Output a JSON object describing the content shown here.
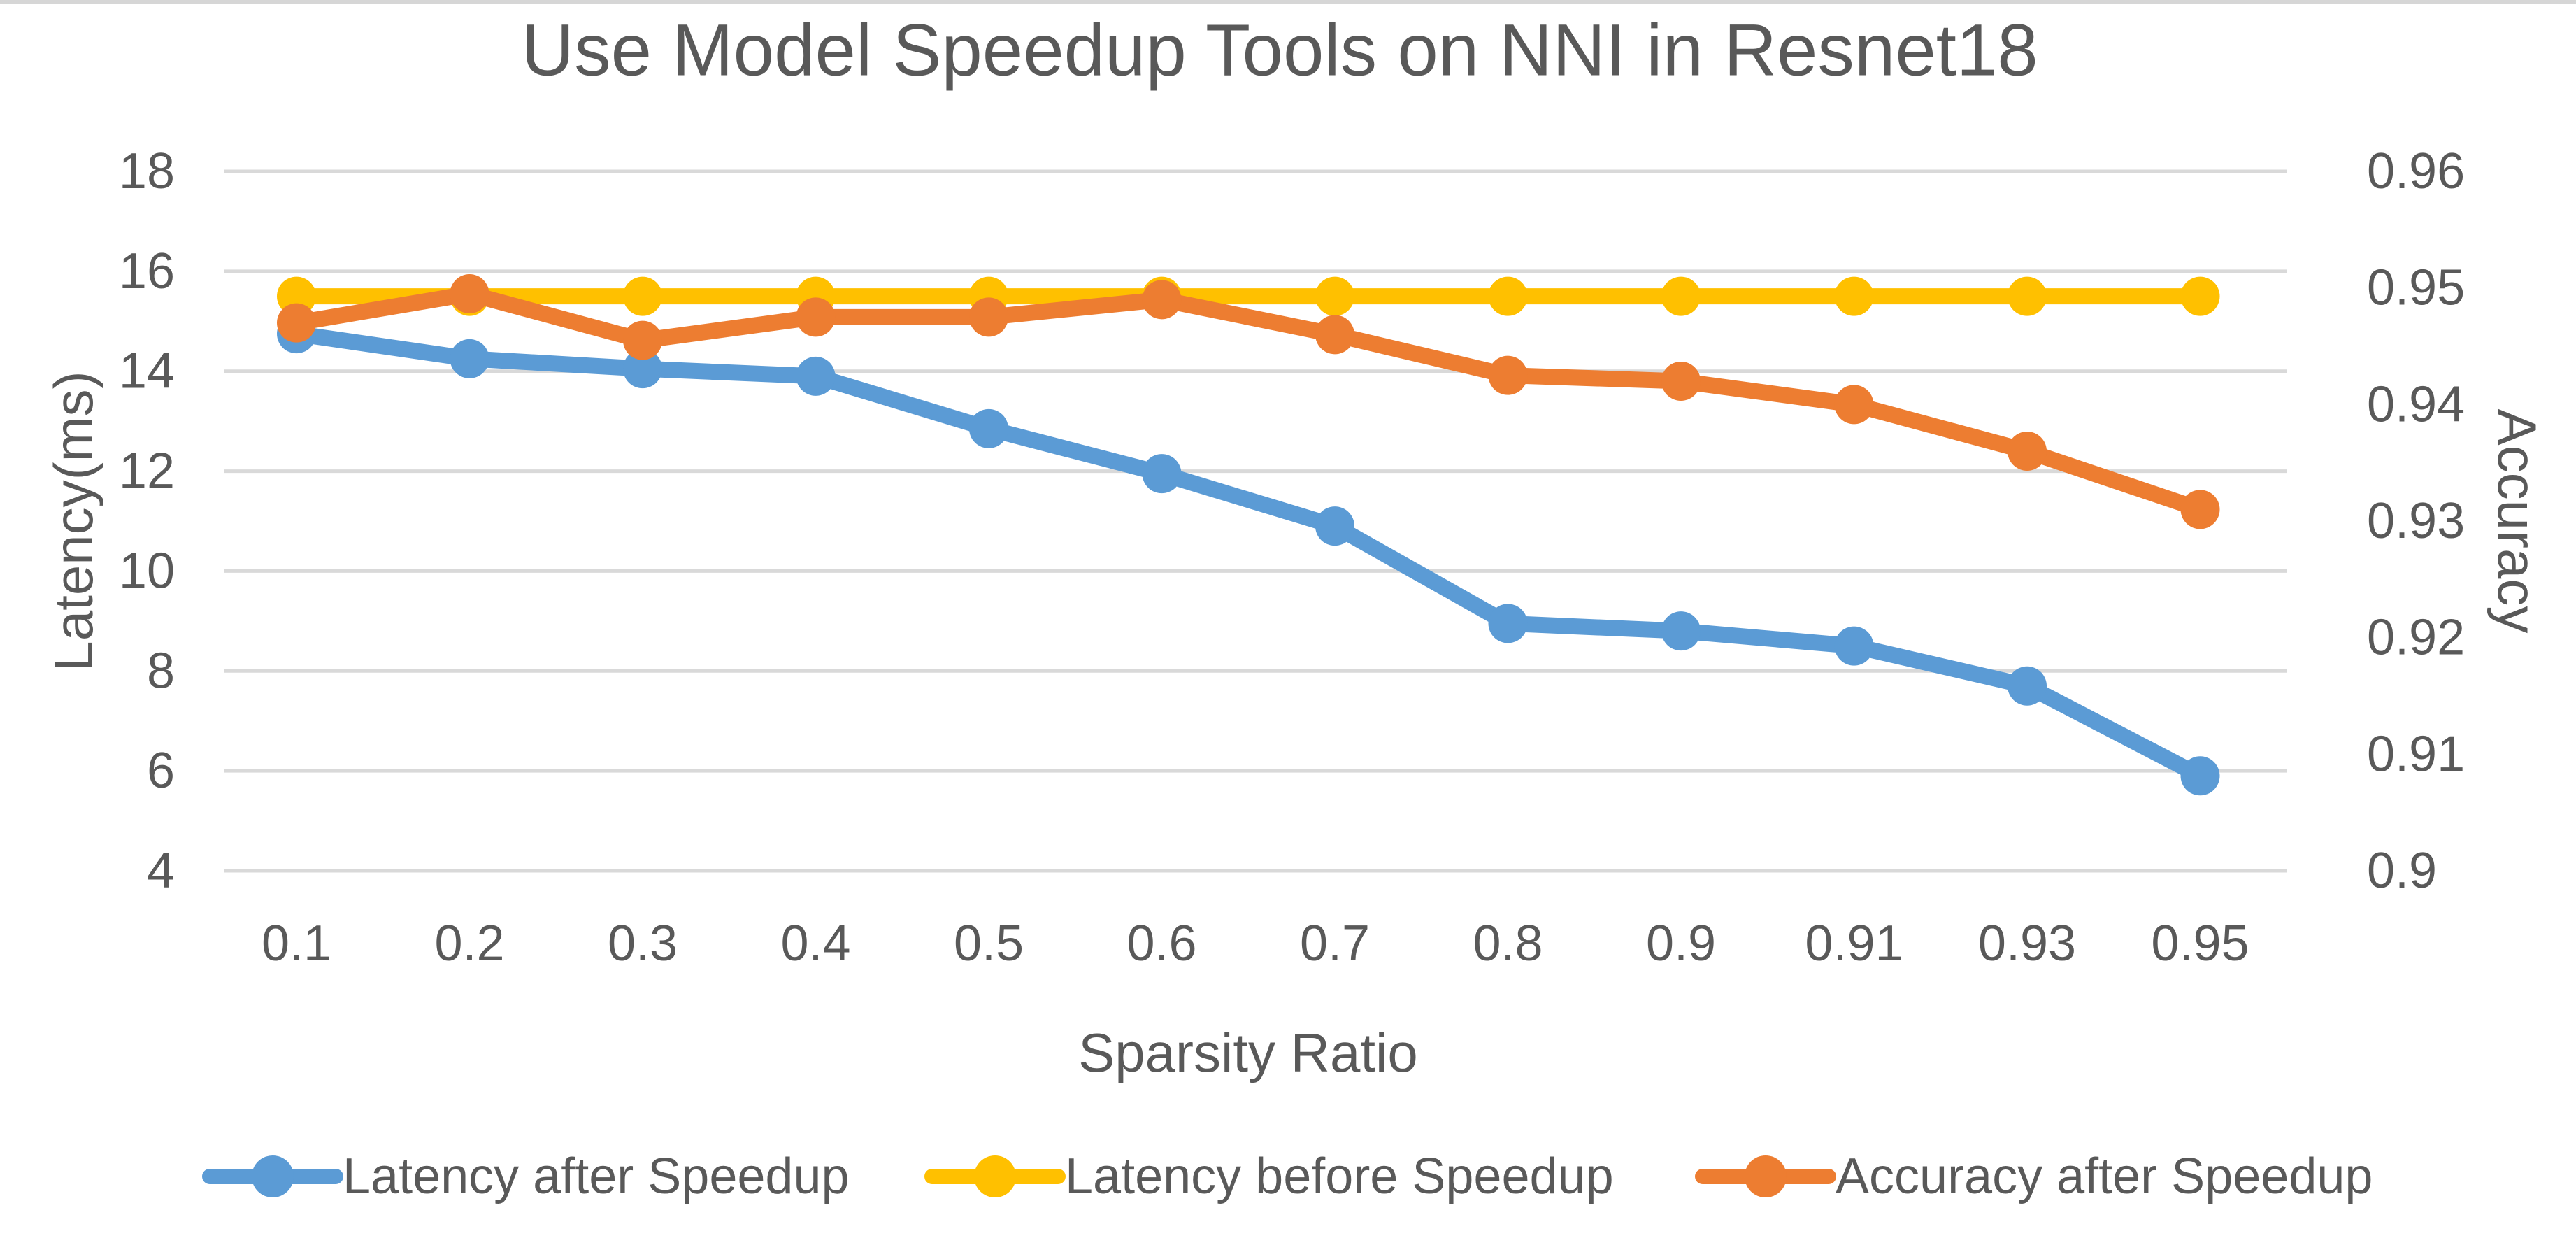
{
  "chart_data": {
    "type": "line",
    "title": "Use Model Speedup Tools on NNI in Resnet18",
    "x_axis": {
      "label": "Sparsity Ratio",
      "ticks": [
        "0.1",
        "0.2",
        "0.3",
        "0.4",
        "0.5",
        "0.6",
        "0.7",
        "0.8",
        "0.9",
        "0.91",
        "0.93",
        "0.95"
      ]
    },
    "y_left": {
      "label": "Latency(ms)",
      "min": 4,
      "max": 18,
      "step": 2,
      "ticks": [
        "18",
        "16",
        "14",
        "12",
        "10",
        "8",
        "6",
        "4"
      ]
    },
    "y_right": {
      "label": "Accuracy",
      "min": 0.9,
      "max": 0.96,
      "step": 0.01,
      "ticks": [
        "0.96",
        "0.95",
        "0.94",
        "0.93",
        "0.92",
        "0.91",
        "0.9"
      ]
    },
    "categories": [
      0.1,
      0.2,
      0.3,
      0.4,
      0.5,
      0.6,
      0.7,
      0.8,
      0.9,
      0.91,
      0.93,
      0.95
    ],
    "series": [
      {
        "name": "Latency after Speedup",
        "axis": "left",
        "color": "#5B9BD5",
        "values": [
          14.75,
          14.25,
          14.05,
          13.9,
          12.85,
          11.95,
          10.9,
          8.95,
          8.8,
          8.5,
          7.7,
          5.9
        ]
      },
      {
        "name": "Latency before Speedup",
        "axis": "left",
        "color": "#FFC000",
        "values": [
          15.5,
          15.5,
          15.5,
          15.5,
          15.5,
          15.5,
          15.5,
          15.5,
          15.5,
          15.5,
          15.5,
          15.5
        ]
      },
      {
        "name": "Accuracy after Speedup",
        "axis": "right",
        "color": "#ED7D31",
        "values": [
          0.947,
          0.9495,
          0.9455,
          0.9475,
          0.9475,
          0.949,
          0.946,
          0.9425,
          0.942,
          0.94,
          0.936,
          0.931
        ]
      }
    ],
    "legend_position": "bottom",
    "grid": "horizontal",
    "colors": {
      "text": "#595959",
      "gridline": "#D9D9D9",
      "background": "#FFFFFF",
      "top_border": "#D6D6D6"
    }
  }
}
